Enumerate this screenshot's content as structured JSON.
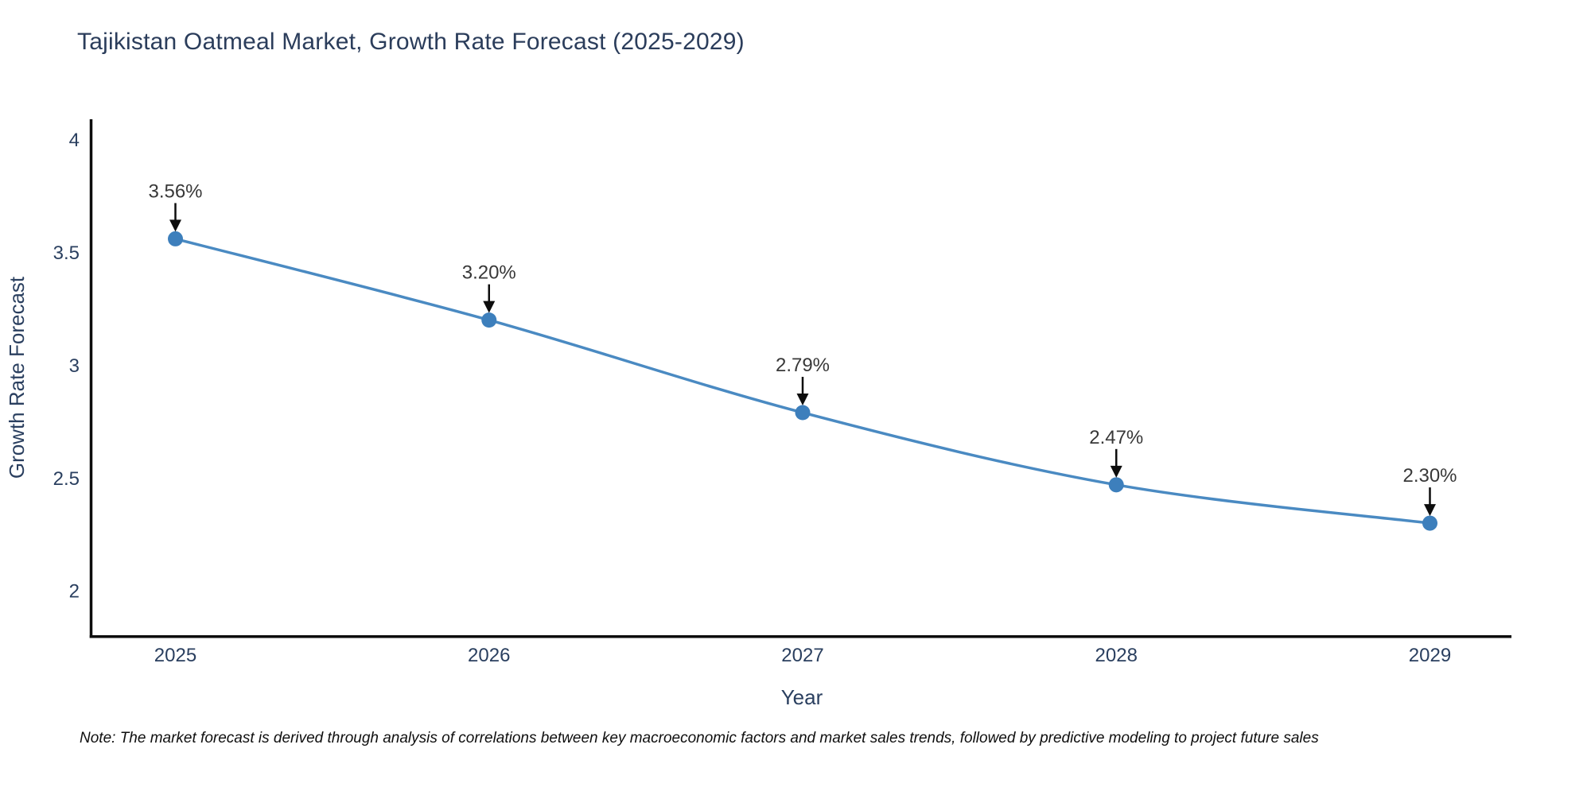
{
  "title": "Tajikistan Oatmeal Market, Growth Rate Forecast (2025-2029)",
  "note": "Note: The market forecast is derived through analysis of correlations between key macroeconomic factors and market sales trends, followed by predictive modeling to project future sales",
  "chart_data": {
    "type": "line",
    "title": "Tajikistan Oatmeal Market, Growth Rate Forecast (2025-2029)",
    "xlabel": "Year",
    "ylabel": "Growth Rate Forecast",
    "categories": [
      "2025",
      "2026",
      "2027",
      "2028",
      "2029"
    ],
    "values": [
      3.56,
      3.2,
      2.79,
      2.47,
      2.3
    ],
    "point_labels": [
      "3.56%",
      "3.20%",
      "2.79%",
      "2.47%",
      "2.30%"
    ],
    "yticks": [
      4,
      3.5,
      3,
      2.5,
      2
    ],
    "ylim": [
      1.8,
      4.09
    ],
    "line_shape": "spline",
    "grid": false,
    "legend_position": "none",
    "colors": {
      "line": "#4a8ac2",
      "marker": "#3d7fbc",
      "axis": "#0d0d0d",
      "axis_text": "#2a3f5f",
      "annotation_text": "#383838",
      "annotation_arrow": "#0d0d0d"
    }
  }
}
